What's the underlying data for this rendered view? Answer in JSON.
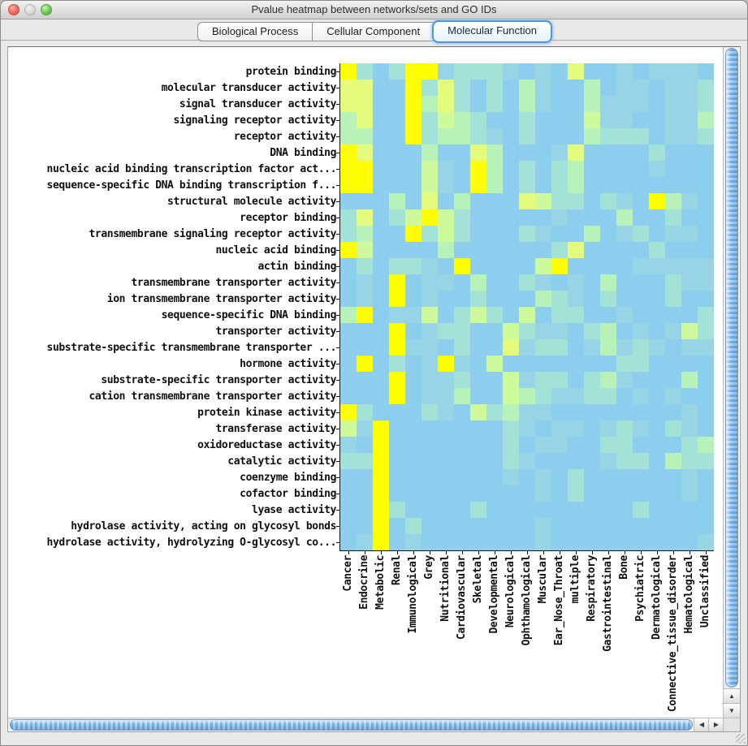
{
  "window": {
    "title": "Pvalue heatmap between networks/sets and GO IDs"
  },
  "titlebar_buttons": [
    "close",
    "minimize",
    "zoom"
  ],
  "tabs": [
    {
      "label": "Biological Process",
      "selected": false
    },
    {
      "label": "Cellular Component",
      "selected": false
    },
    {
      "label": "Molecular Function",
      "selected": true
    }
  ],
  "chart_data": {
    "type": "heatmap",
    "title": "",
    "rows": [
      "protein binding",
      "molecular transducer activity",
      "signal transducer activity",
      "signaling receptor activity",
      "receptor activity",
      "DNA binding",
      "nucleic acid binding transcription factor act...",
      "sequence-specific DNA binding transcription f...",
      "structural molecule activity",
      "receptor binding",
      "transmembrane signaling receptor activity",
      "nucleic acid binding",
      "actin binding",
      "transmembrane transporter activity",
      "ion transmembrane transporter activity",
      "sequence-specific DNA binding",
      "transporter activity",
      "substrate-specific transmembrane transporter ...",
      "hormone activity",
      "substrate-specific transporter activity",
      "cation transmembrane transporter activity",
      "protein kinase activity",
      "transferase activity",
      "oxidoreductase activity",
      "catalytic activity",
      "coenzyme binding",
      "cofactor binding",
      "lyase activity",
      "hydrolase activity, acting on glycosyl bonds",
      "hydrolase activity, hydrolyzing O-glycosyl co..."
    ],
    "columns": [
      "Cancer",
      "Endocrine",
      "Metabolic",
      "Renal",
      "Immunological",
      "Grey",
      "Nutritional",
      "Cardiovascular",
      "Skeletal",
      "Developmental",
      "Neurological",
      "Ophthamological",
      "Muscular",
      "Ear_Nose_Throat",
      "multiple",
      "Respiratory",
      "Gastrointestinal",
      "Bone",
      "Psychiatric",
      "Dermatological",
      "Connective_tissue_disorder",
      "Hematological",
      "Unclassified"
    ],
    "palette": [
      "#8DCDEE",
      "#97D5E6",
      "#A3E2D6",
      "#B7F3B9",
      "#CFFA9C",
      "#E4FB7C",
      "#FFFF00"
    ],
    "palette_scale": "0=blue … 6=yellow (intensity levels read from pixels)",
    "matrix": [
      [
        6,
        2,
        0,
        2,
        6,
        6,
        1,
        2,
        2,
        2,
        1,
        0,
        1,
        0,
        5,
        0,
        0,
        1,
        0,
        1,
        1,
        1,
        0
      ],
      [
        5,
        5,
        0,
        0,
        6,
        2,
        5,
        2,
        0,
        2,
        0,
        3,
        1,
        0,
        0,
        3,
        0,
        1,
        1,
        0,
        1,
        1,
        2
      ],
      [
        5,
        5,
        0,
        0,
        6,
        3,
        5,
        2,
        0,
        2,
        0,
        3,
        1,
        0,
        0,
        3,
        1,
        1,
        1,
        0,
        1,
        1,
        2
      ],
      [
        3,
        5,
        0,
        0,
        6,
        2,
        4,
        3,
        2,
        0,
        0,
        2,
        0,
        0,
        0,
        4,
        1,
        1,
        0,
        0,
        1,
        1,
        3
      ],
      [
        3,
        3,
        0,
        0,
        6,
        2,
        3,
        3,
        2,
        1,
        0,
        2,
        0,
        0,
        0,
        3,
        2,
        2,
        2,
        0,
        1,
        1,
        2
      ],
      [
        6,
        5,
        0,
        0,
        0,
        3,
        0,
        0,
        5,
        3,
        0,
        0,
        0,
        1,
        5,
        0,
        0,
        0,
        0,
        2,
        0,
        0,
        0
      ],
      [
        6,
        6,
        0,
        0,
        0,
        4,
        1,
        0,
        6,
        3,
        0,
        2,
        0,
        2,
        3,
        0,
        0,
        0,
        0,
        1,
        0,
        0,
        0
      ],
      [
        6,
        6,
        0,
        0,
        0,
        4,
        1,
        0,
        6,
        3,
        0,
        2,
        0,
        2,
        3,
        0,
        0,
        0,
        0,
        0,
        0,
        0,
        0
      ],
      [
        0,
        0,
        0,
        3,
        0,
        5,
        0,
        3,
        0,
        0,
        0,
        5,
        4,
        2,
        2,
        0,
        2,
        1,
        0,
        6,
        3,
        1,
        0
      ],
      [
        2,
        5,
        0,
        2,
        4,
        6,
        4,
        2,
        0,
        0,
        0,
        0,
        0,
        1,
        0,
        0,
        0,
        3,
        0,
        0,
        2,
        0,
        0
      ],
      [
        2,
        3,
        0,
        0,
        6,
        2,
        4,
        2,
        0,
        0,
        0,
        2,
        1,
        0,
        0,
        3,
        0,
        1,
        2,
        0,
        1,
        1,
        0
      ],
      [
        6,
        4,
        0,
        0,
        0,
        0,
        3,
        0,
        0,
        0,
        0,
        0,
        0,
        2,
        5,
        0,
        0,
        0,
        0,
        2,
        0,
        0,
        0
      ],
      [
        0,
        2,
        0,
        2,
        2,
        1,
        0,
        6,
        0,
        0,
        0,
        0,
        4,
        6,
        0,
        0,
        0,
        0,
        1,
        1,
        1,
        1,
        1
      ],
      [
        0,
        1,
        0,
        6,
        0,
        1,
        1,
        0,
        3,
        0,
        0,
        2,
        1,
        0,
        1,
        0,
        3,
        0,
        0,
        0,
        2,
        1,
        1
      ],
      [
        0,
        1,
        0,
        6,
        0,
        1,
        0,
        0,
        2,
        0,
        0,
        0,
        3,
        2,
        1,
        0,
        2,
        0,
        0,
        0,
        2,
        0,
        0
      ],
      [
        3,
        6,
        0,
        1,
        1,
        4,
        0,
        2,
        4,
        2,
        0,
        4,
        0,
        2,
        2,
        0,
        0,
        1,
        0,
        0,
        0,
        0,
        2
      ],
      [
        0,
        0,
        0,
        6,
        0,
        1,
        2,
        2,
        0,
        0,
        4,
        2,
        1,
        1,
        0,
        2,
        3,
        0,
        1,
        0,
        1,
        4,
        2
      ],
      [
        0,
        0,
        0,
        6,
        1,
        1,
        0,
        2,
        0,
        0,
        5,
        1,
        2,
        2,
        0,
        1,
        3,
        1,
        2,
        1,
        0,
        1,
        1
      ],
      [
        0,
        6,
        0,
        2,
        0,
        1,
        6,
        1,
        0,
        4,
        0,
        0,
        0,
        0,
        0,
        0,
        0,
        2,
        2,
        0,
        0,
        0,
        0
      ],
      [
        0,
        0,
        0,
        6,
        0,
        1,
        1,
        2,
        0,
        0,
        4,
        1,
        2,
        2,
        0,
        2,
        3,
        1,
        0,
        0,
        0,
        3,
        0
      ],
      [
        0,
        0,
        0,
        6,
        0,
        1,
        1,
        3,
        0,
        0,
        4,
        3,
        2,
        1,
        1,
        2,
        2,
        0,
        1,
        0,
        1,
        0,
        0
      ],
      [
        6,
        2,
        0,
        0,
        0,
        2,
        1,
        0,
        4,
        2,
        3,
        1,
        1,
        0,
        0,
        0,
        0,
        0,
        0,
        0,
        0,
        1,
        0
      ],
      [
        4,
        1,
        6,
        0,
        0,
        0,
        0,
        0,
        0,
        0,
        2,
        1,
        0,
        1,
        1,
        0,
        1,
        2,
        1,
        0,
        2,
        1,
        0
      ],
      [
        1,
        0,
        6,
        0,
        0,
        0,
        0,
        0,
        0,
        0,
        2,
        0,
        1,
        1,
        0,
        0,
        2,
        2,
        0,
        0,
        0,
        2,
        3
      ],
      [
        2,
        2,
        6,
        0,
        0,
        0,
        0,
        0,
        0,
        0,
        2,
        1,
        0,
        0,
        0,
        0,
        1,
        2,
        2,
        0,
        3,
        2,
        2
      ],
      [
        0,
        0,
        6,
        0,
        0,
        0,
        0,
        0,
        0,
        0,
        1,
        0,
        1,
        0,
        2,
        0,
        0,
        0,
        0,
        0,
        0,
        1,
        0
      ],
      [
        0,
        0,
        6,
        0,
        0,
        0,
        0,
        0,
        0,
        0,
        0,
        0,
        1,
        0,
        2,
        0,
        0,
        0,
        0,
        0,
        0,
        1,
        0
      ],
      [
        0,
        0,
        6,
        2,
        0,
        0,
        0,
        0,
        2,
        0,
        0,
        0,
        0,
        0,
        0,
        0,
        0,
        0,
        2,
        0,
        0,
        0,
        0
      ],
      [
        0,
        0,
        6,
        0,
        2,
        0,
        0,
        0,
        0,
        0,
        0,
        0,
        1,
        0,
        0,
        0,
        0,
        0,
        0,
        0,
        0,
        0,
        0
      ],
      [
        0,
        1,
        6,
        0,
        1,
        0,
        0,
        0,
        0,
        0,
        0,
        0,
        1,
        0,
        0,
        0,
        0,
        0,
        0,
        0,
        0,
        0,
        1
      ]
    ]
  },
  "scrollbars": {
    "vertical": {
      "up_glyph": "▲",
      "down_glyph": "▼"
    },
    "horizontal": {
      "left_glyph": "◀",
      "right_glyph": "▶"
    }
  }
}
